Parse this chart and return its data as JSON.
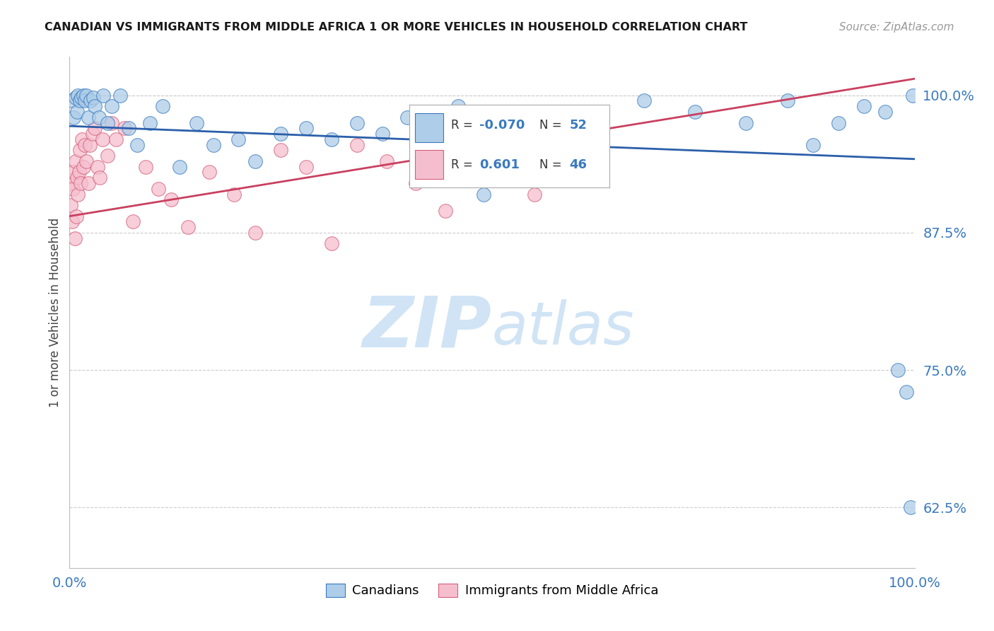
{
  "title": "CANADIAN VS IMMIGRANTS FROM MIDDLE AFRICA 1 OR MORE VEHICLES IN HOUSEHOLD CORRELATION CHART",
  "source": "Source: ZipAtlas.com",
  "ylabel": "1 or more Vehicles in Household",
  "xlim": [
    0.0,
    100.0
  ],
  "ylim": [
    57.0,
    103.5
  ],
  "yticks": [
    62.5,
    75.0,
    87.5,
    100.0
  ],
  "ytick_labels": [
    "62.5%",
    "75.0%",
    "87.5%",
    "100.0%"
  ],
  "blue_R": -0.07,
  "blue_N": 52,
  "pink_R": 0.601,
  "pink_N": 46,
  "blue_color": "#aecde8",
  "pink_color": "#f5bece",
  "blue_edge_color": "#3a7abf",
  "pink_edge_color": "#d4607a",
  "blue_line_color": "#2b5faa",
  "pink_line_color": "#c94060",
  "watermark_color": "#d0e4f5",
  "tick_color": "#3a7abf",
  "title_color": "#1a1a1a",
  "source_color": "#999999",
  "axis_label_color": "#444444",
  "grid_color": "#cccccc",
  "blue_x": [
    0.3,
    0.5,
    0.7,
    0.9,
    1.0,
    1.2,
    1.4,
    1.6,
    1.8,
    2.0,
    2.2,
    2.5,
    2.8,
    3.0,
    3.5,
    4.0,
    4.5,
    5.0,
    6.0,
    7.0,
    8.0,
    9.5,
    11.0,
    13.0,
    15.0,
    17.0,
    20.0,
    22.0,
    25.0,
    28.0,
    31.0,
    34.0,
    37.0,
    40.0,
    43.0,
    46.0,
    49.0,
    52.0,
    57.0,
    63.0,
    68.0,
    74.0,
    80.0,
    85.0,
    88.0,
    91.0,
    94.0,
    96.5,
    98.0,
    99.0,
    99.5,
    99.8
  ],
  "blue_y": [
    99.5,
    98.0,
    99.8,
    98.5,
    100.0,
    99.5,
    99.8,
    100.0,
    99.5,
    100.0,
    98.0,
    99.5,
    99.8,
    99.0,
    98.0,
    100.0,
    97.5,
    99.0,
    100.0,
    97.0,
    95.5,
    97.5,
    99.0,
    93.5,
    97.5,
    95.5,
    96.0,
    94.0,
    96.5,
    97.0,
    96.0,
    97.5,
    96.5,
    98.0,
    97.0,
    99.0,
    91.0,
    95.5,
    97.5,
    98.5,
    99.5,
    98.5,
    97.5,
    99.5,
    95.5,
    97.5,
    99.0,
    98.5,
    75.0,
    73.0,
    62.5,
    100.0
  ],
  "pink_x": [
    0.1,
    0.2,
    0.3,
    0.4,
    0.5,
    0.6,
    0.7,
    0.8,
    0.9,
    1.0,
    1.1,
    1.2,
    1.3,
    1.5,
    1.6,
    1.8,
    2.0,
    2.2,
    2.4,
    2.7,
    3.0,
    3.3,
    3.6,
    3.9,
    4.5,
    5.0,
    5.5,
    6.5,
    7.5,
    9.0,
    10.5,
    12.0,
    14.0,
    16.5,
    19.5,
    22.0,
    25.0,
    28.0,
    31.0,
    34.0,
    37.5,
    41.0,
    44.5,
    48.0,
    51.5,
    55.0
  ],
  "pink_y": [
    90.0,
    92.0,
    88.5,
    91.5,
    93.0,
    87.0,
    94.0,
    89.0,
    92.5,
    91.0,
    93.0,
    95.0,
    92.0,
    96.0,
    93.5,
    95.5,
    94.0,
    92.0,
    95.5,
    96.5,
    97.0,
    93.5,
    92.5,
    96.0,
    94.5,
    97.5,
    96.0,
    97.0,
    88.5,
    93.5,
    91.5,
    90.5,
    88.0,
    93.0,
    91.0,
    87.5,
    95.0,
    93.5,
    86.5,
    95.5,
    94.0,
    92.0,
    89.5,
    96.0,
    95.0,
    91.0
  ]
}
